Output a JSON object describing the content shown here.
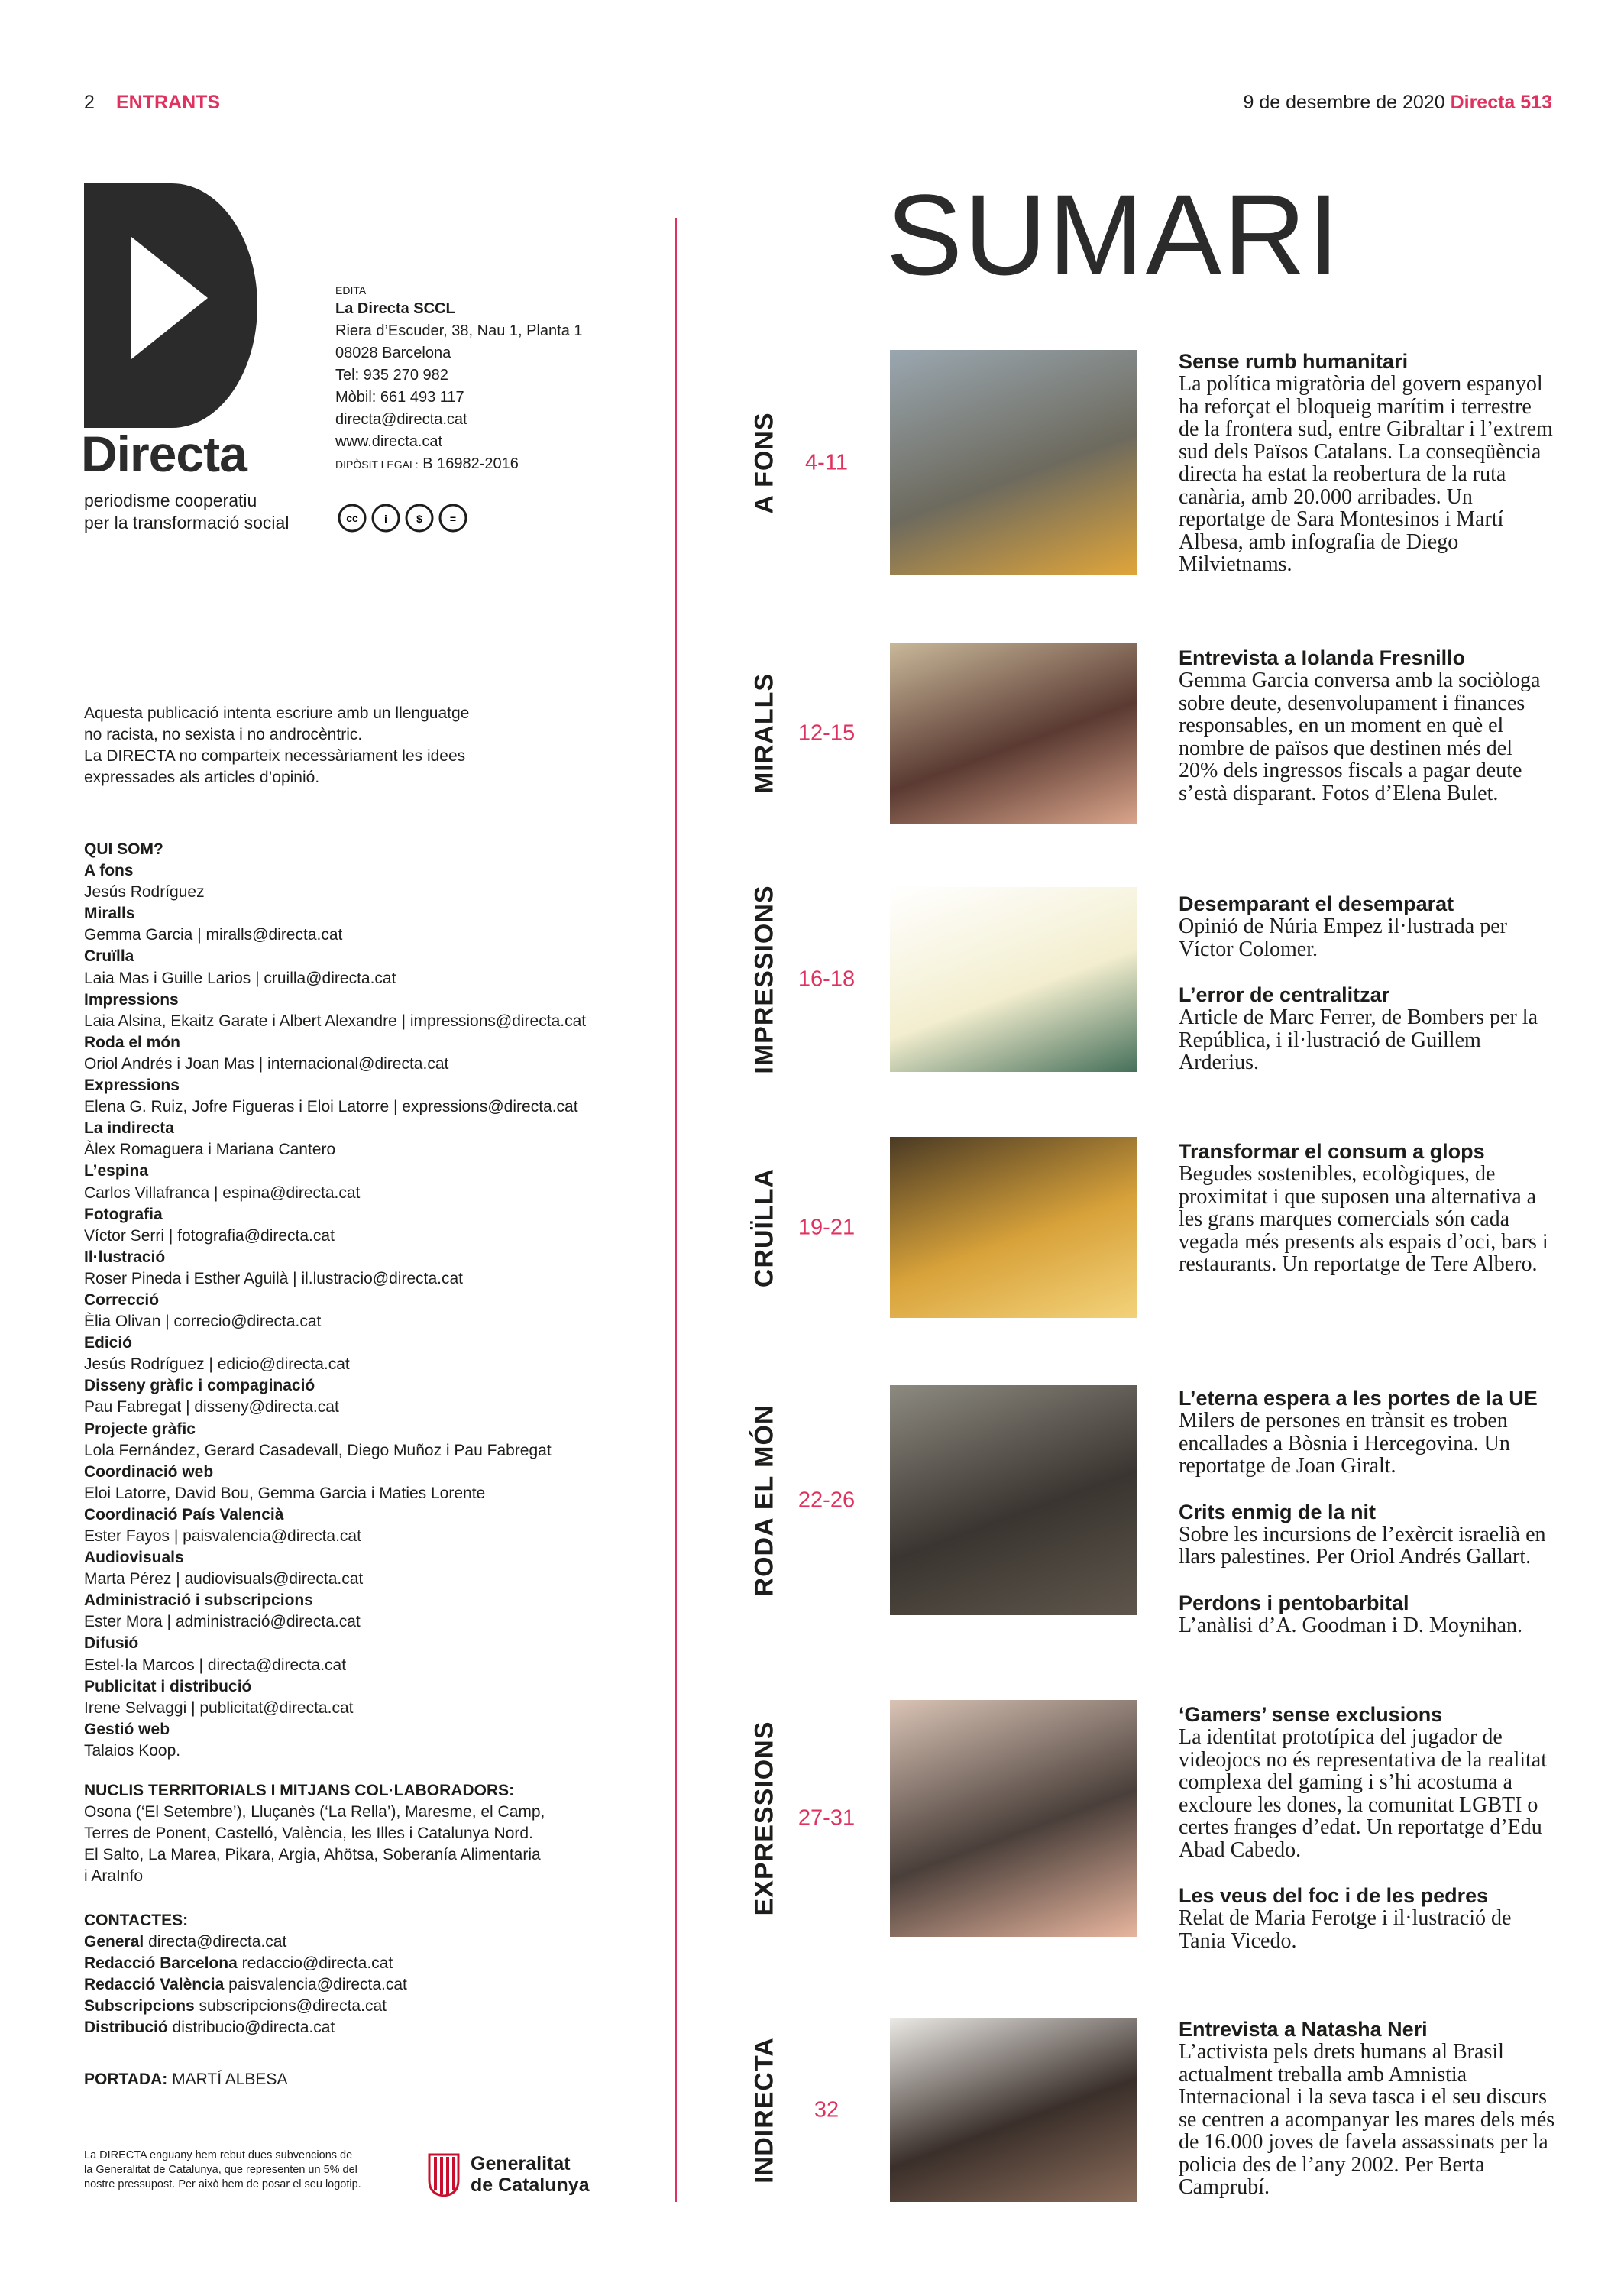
{
  "header": {
    "page_number": "2",
    "section": "ENTRANTS",
    "date": "9 de desembre de 2020",
    "issue": "Directa 513"
  },
  "masthead": {
    "logo": "Directa",
    "tagline": [
      "periodisme cooperatiu",
      "per la transformació social"
    ]
  },
  "edita": {
    "label": "EDITA",
    "name": "La Directa SCCL",
    "lines": [
      "Riera d’Escuder, 38, Nau 1, Planta 1",
      "08028 Barcelona",
      "Tel: 935 270 982",
      "Mòbil: 661 493 117",
      "directa@directa.cat",
      "www.directa.cat"
    ],
    "deposit_label": "DIPÒSIT LEGAL:",
    "deposit_value": "B 16982-2016"
  },
  "disclaimer": [
    "Aquesta publicació intenta escriure amb un llenguatge",
    "no racista, no sexista i no androcèntric.",
    "La DIRECTA no comparteix necessàriament les idees",
    "expressades als articles d’opinió."
  ],
  "staff": {
    "title": "QUI SOM?",
    "items": [
      {
        "role": "A fons",
        "names": "Jesús Rodríguez"
      },
      {
        "role": "Miralls",
        "names": "Gemma Garcia | miralls@directa.cat"
      },
      {
        "role": "Cruïlla",
        "names": "Laia Mas i Guille Larios | cruilla@directa.cat"
      },
      {
        "role": "Impressions",
        "names": "Laia Alsina, Ekaitz Garate i Albert Alexandre | impressions@directa.cat"
      },
      {
        "role": "Roda el món",
        "names": "Oriol Andrés i Joan Mas | internacional@directa.cat"
      },
      {
        "role": "Expressions",
        "names": "Elena G. Ruiz, Jofre Figueras i Eloi Latorre | expressions@directa.cat"
      },
      {
        "role": "La indirecta",
        "names": "Àlex Romaguera i Mariana Cantero"
      },
      {
        "role": "L’espina",
        "names": "Carlos Villafranca | espina@directa.cat"
      },
      {
        "role": "Fotografia",
        "names": "Víctor Serri | fotografia@directa.cat"
      },
      {
        "role": "Il·lustració",
        "names": "Roser Pineda i Esther Aguilà | il.lustracio@directa.cat"
      },
      {
        "role": "Correcció",
        "names": "Èlia Olivan | correcio@directa.cat"
      },
      {
        "role": "Edició",
        "names": "Jesús Rodríguez | edicio@directa.cat"
      },
      {
        "role": "Disseny gràfic i compaginació",
        "names": "Pau Fabregat | disseny@directa.cat"
      },
      {
        "role": "Projecte gràfic",
        "names": "Lola Fernández, Gerard Casadevall, Diego Muñoz i Pau Fabregat"
      },
      {
        "role": "Coordinació web",
        "names": "Eloi Latorre, David Bou, Gemma Garcia i Maties Lorente"
      },
      {
        "role": "Coordinació País Valencià",
        "names": "Ester Fayos | paisvalencia@directa.cat"
      },
      {
        "role": "Audiovisuals",
        "names": "Marta Pérez | audiovisuals@directa.cat"
      },
      {
        "role": "Administració i subscripcions",
        "names": "Ester Mora | administració@directa.cat"
      },
      {
        "role": "Difusió",
        "names": "Estel·la Marcos | directa@directa.cat"
      },
      {
        "role": "Publicitat i distribució",
        "names": "Irene Selvaggi | publicitat@directa.cat"
      },
      {
        "role": "Gestió web",
        "names": "Talaios Koop."
      }
    ]
  },
  "nuclis": {
    "title": "NUCLIS TERRITORIALS I MITJANS COL·LABORADORS:",
    "lines": [
      "Osona (‘El Setembre’), Lluçanès (‘La Rella’), Maresme, el Camp,",
      "Terres de Ponent, Castelló, València, les Illes i Catalunya Nord.",
      "El Salto, La Marea, Pikara, Argia, Ahötsa, Soberanía Alimentaria",
      "i AraInfo"
    ]
  },
  "contacts": {
    "title": "CONTACTES:",
    "items": [
      {
        "label": "General",
        "value": "directa@directa.cat"
      },
      {
        "label": "Redacció Barcelona",
        "value": "redaccio@directa.cat"
      },
      {
        "label": "Redacció València",
        "value": "paisvalencia@directa.cat"
      },
      {
        "label": "Subscripcions",
        "value": "subscripcions@directa.cat"
      },
      {
        "label": "Distribució",
        "value": "distribucio@directa.cat"
      }
    ]
  },
  "cover": {
    "label": "PORTADA:",
    "value": "MARTÍ ALBESA"
  },
  "subsidy": {
    "lines": [
      "La DIRECTA enguany hem rebut dues subvencions de",
      "la Generalitat de Catalunya, que representen un 5% del",
      "nostre pressupost. Per això hem de posar el seu logotip."
    ],
    "logo": [
      "Generalitat",
      "de Catalunya"
    ]
  },
  "sumari": {
    "title": "SUMARI",
    "sections": [
      {
        "name": "A FONS",
        "pages": "4-11",
        "articles": [
          {
            "title": "Sense rumb humanitari",
            "body": "La política migratòria del govern espanyol ha reforçat el bloqueig marítim i terrestre de la frontera sud, entre Gibraltar i l’extrem sud dels Països Catalans. La conseqüència directa ha estat la reobertura de la ruta canària, amb 20.000 arribades. Un reportatge de Sara Montesinos i Martí Albesa, amb infografia de Diego Milvietnams."
          }
        ]
      },
      {
        "name": "MIRALLS",
        "pages": "12-15",
        "articles": [
          {
            "title": "Entrevista a Iolanda Fresnillo",
            "body": "Gemma Garcia conversa amb la sociòloga sobre deute, desenvolupament i finances responsables, en un moment en què el nombre de països que destinen més del 20% dels ingressos fiscals a pagar deute s’està disparant. Fotos d’Elena Bulet."
          }
        ]
      },
      {
        "name": "IMPRESSIONS",
        "pages": "16-18",
        "articles": [
          {
            "title": "Desemparant el desemparat",
            "body": "Opinió de Núria Empez il·lustrada per Víctor Colomer."
          },
          {
            "title": "L’error de centralitzar",
            "body": "Article de Marc Ferrer, de Bombers per la República, i il·lustració de Guillem Arderius."
          }
        ]
      },
      {
        "name": "CRUÏLLA",
        "pages": "19-21",
        "articles": [
          {
            "title": "Transformar el consum a glops",
            "body": "Begudes sostenibles, ecològiques, de proximitat i que suposen una alternativa a les grans marques comercials són cada vegada més presents als espais d’oci, bars i restaurants. Un reportatge de Tere Albero."
          }
        ]
      },
      {
        "name": "RODA EL MÓN",
        "pages": "22-26",
        "articles": [
          {
            "title": "L’eterna espera a les portes de la UE",
            "body": "Milers de persones en trànsit es troben encallades a Bòsnia i Hercegovina. Un reportatge de Joan Giralt."
          },
          {
            "title": "Crits enmig de la nit",
            "body": "Sobre les incursions de l’exèrcit israelià en llars palestines. Per Oriol Andrés Gallart."
          },
          {
            "title": "Perdons i pentobarbital",
            "body": "L’anàlisi d’A. Goodman i D. Moynihan."
          }
        ]
      },
      {
        "name": "EXPRESSIONS",
        "pages": "27-31",
        "articles": [
          {
            "title": "‘Gamers’ sense exclusions",
            "body": "La identitat prototípica del jugador de videojocs no és representativa de la realitat complexa del gaming i s’hi acostuma a excloure les dones, la comunitat LGBTI o certes franges d’edat. Un reportatge d’Edu Abad Cabedo."
          },
          {
            "title": "Les veus del foc i de les pedres",
            "body": "Relat de Maria Ferotge i il·lustració de Tania Vicedo."
          }
        ]
      },
      {
        "name": "INDIRECTA",
        "pages": "32",
        "articles": [
          {
            "title": "Entrevista a Natasha Neri",
            "body": "L’activista pels drets humans al Brasil actualment treballa amb Amnistia Internacional i la seva tasca i el seu discurs se centren a acompanyar les mares dels més de 16.000 joves de favela assassinats per la policia des de l’any 2002. Per Berta Camprubí."
          }
        ]
      }
    ]
  }
}
